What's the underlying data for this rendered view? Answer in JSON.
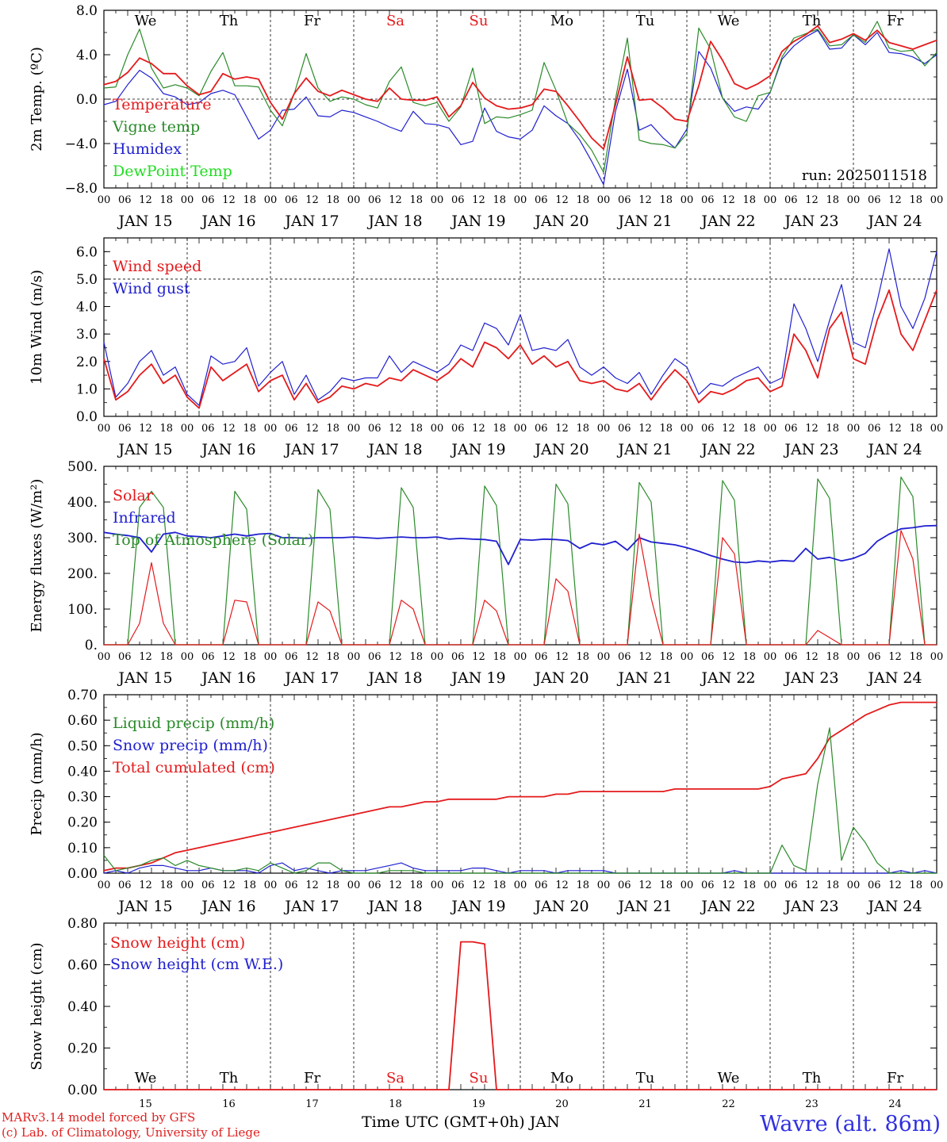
{
  "colors": {
    "red": "#e41a1c",
    "green": "#2a8a2a",
    "blue": "#2020d0",
    "lightgreen": "#22dd22",
    "axis": "#000000",
    "weekend": "#e41a1c"
  },
  "days": [
    {
      "abbr": "We",
      "date": "JAN 15",
      "num": "15",
      "weekend": false
    },
    {
      "abbr": "Th",
      "date": "JAN 16",
      "num": "16",
      "weekend": false
    },
    {
      "abbr": "Fr",
      "date": "JAN 17",
      "num": "17",
      "weekend": false
    },
    {
      "abbr": "Sa",
      "date": "JAN 18",
      "num": "18",
      "weekend": true
    },
    {
      "abbr": "Su",
      "date": "JAN 19",
      "num": "19",
      "weekend": true
    },
    {
      "abbr": "Mo",
      "date": "JAN 20",
      "num": "20",
      "weekend": false
    },
    {
      "abbr": "Tu",
      "date": "JAN 21",
      "num": "21",
      "weekend": false
    },
    {
      "abbr": "We",
      "date": "JAN 22",
      "num": "22",
      "weekend": false
    },
    {
      "abbr": "Th",
      "date": "JAN 23",
      "num": "23",
      "weekend": false
    },
    {
      "abbr": "Fr",
      "date": "JAN 24",
      "num": "24",
      "weekend": false
    }
  ],
  "hour_labels": [
    "00",
    "06",
    "12",
    "18"
  ],
  "footer": {
    "credit1": "MARv3.14 model forced by GFS",
    "credit2": "(c) Lab. of Climatology, University of Liege",
    "xtitle": "Time UTC (GMT+0h) JAN",
    "station": "Wavre (alt. 86m)"
  },
  "chart_data": [
    {
      "id": "temperature",
      "type": "line",
      "ylabel": "2m Temp. (ºC)",
      "ylim": [
        -8,
        8
      ],
      "yticks": [
        "8.0",
        "4.0",
        "0.0",
        "−4.0",
        "−8.0"
      ],
      "ytick_values": [
        8,
        4,
        0,
        -4,
        -8
      ],
      "ref_line": 0,
      "annotation": "run: 2025011518",
      "x_unit": "hours since JAN 15 00 UTC, 3-hourly",
      "series": [
        {
          "name": "Temperature",
          "color": "red",
          "values": [
            1.3,
            1.6,
            2.4,
            3.7,
            3.2,
            2.3,
            2.3,
            1.2,
            0.4,
            0.7,
            2.3,
            1.8,
            2.0,
            1.8,
            -0.3,
            -1.8,
            0.5,
            1.9,
            0.7,
            0.3,
            0.8,
            0.4,
            0.0,
            -0.2,
            1.0,
            0.0,
            -0.1,
            -0.1,
            0.2,
            -1.6,
            -0.6,
            1.5,
            0.1,
            -0.6,
            -0.9,
            -0.8,
            -0.5,
            0.9,
            0.7,
            -0.6,
            -2.0,
            -3.5,
            -4.5,
            -0.5,
            3.8,
            -0.1,
            0.0,
            -0.8,
            -1.8,
            -2.0,
            1.2,
            5.2,
            3.5,
            1.4,
            0.9,
            1.4,
            2.1,
            4.3,
            5.2,
            5.8,
            6.6,
            5.1,
            5.4,
            5.9,
            5.3,
            6.2,
            5.1,
            4.8,
            4.5,
            4.9,
            5.3
          ]
        },
        {
          "name": "Vigne temp",
          "color": "green",
          "values": [
            1.0,
            1.1,
            4.0,
            6.3,
            2.8,
            1.0,
            1.3,
            1.0,
            0.3,
            2.5,
            4.2,
            1.2,
            1.2,
            1.1,
            -1.0,
            -2.4,
            0.5,
            4.1,
            1.0,
            -0.2,
            0.2,
            0.0,
            -0.5,
            -0.8,
            1.6,
            2.9,
            -0.3,
            -0.6,
            -0.3,
            -2.0,
            -0.7,
            2.8,
            -2.2,
            -1.6,
            -1.7,
            -1.4,
            -1.0,
            3.3,
            0.8,
            -2.2,
            -3.2,
            -4.6,
            -6.6,
            0.0,
            5.5,
            -3.7,
            -4.0,
            -4.1,
            -4.4,
            -3.1,
            6.4,
            4.5,
            0.1,
            -1.6,
            -2.0,
            0.3,
            0.6,
            3.8,
            5.5,
            5.9,
            6.3,
            4.8,
            4.9,
            5.8,
            5.1,
            7.0,
            4.6,
            4.3,
            4.4,
            3.0,
            4.2
          ]
        },
        {
          "name": "Humidex",
          "color": "blue",
          "values": [
            -0.5,
            -0.2,
            1.3,
            2.6,
            1.9,
            0.5,
            0.2,
            -0.5,
            -0.3,
            0.5,
            0.8,
            0.4,
            -1.6,
            -3.6,
            -2.8,
            -1.0,
            -0.9,
            0.2,
            -1.5,
            -1.6,
            -1.0,
            -1.2,
            -1.6,
            -2.0,
            -2.5,
            -2.9,
            -1.1,
            -2.2,
            -2.3,
            -2.6,
            -4.1,
            -3.8,
            -0.8,
            -2.9,
            -3.4,
            -3.6,
            -2.8,
            -0.6,
            -1.5,
            -2.2,
            -3.7,
            -5.6,
            -7.7,
            -1.1,
            2.7,
            -2.8,
            -2.3,
            -3.5,
            -4.4,
            -2.7,
            4.3,
            2.8,
            0.1,
            -1.1,
            -0.7,
            -0.9,
            0.6,
            3.6,
            4.8,
            5.6,
            6.2,
            4.5,
            4.6,
            5.8,
            4.9,
            6.0,
            4.2,
            4.1,
            3.8,
            3.2,
            4.0
          ]
        },
        {
          "name": "DewPoint Temp",
          "color": "lightgreen",
          "values": []
        }
      ]
    },
    {
      "id": "wind",
      "type": "line",
      "ylabel": "10m Wind (m/s)",
      "ylim": [
        0,
        6.5
      ],
      "yticks": [
        "6.0",
        "5.0",
        "4.0",
        "3.0",
        "2.0",
        "1.0",
        "0.0"
      ],
      "ytick_values": [
        6,
        5,
        4,
        3,
        2,
        1,
        0
      ],
      "ref_line": 5.0,
      "series": [
        {
          "name": "Wind speed",
          "color": "red",
          "values": [
            2.1,
            0.6,
            0.9,
            1.5,
            1.9,
            1.2,
            1.5,
            0.7,
            0.3,
            1.8,
            1.3,
            1.6,
            1.9,
            0.9,
            1.3,
            1.5,
            0.6,
            1.2,
            0.5,
            0.7,
            1.1,
            1.0,
            1.2,
            1.1,
            1.4,
            1.3,
            1.7,
            1.5,
            1.3,
            1.6,
            2.1,
            1.8,
            2.7,
            2.5,
            2.1,
            2.6,
            1.9,
            2.2,
            1.8,
            2.0,
            1.3,
            1.2,
            1.3,
            1.0,
            0.9,
            1.2,
            0.6,
            1.2,
            1.7,
            1.3,
            0.5,
            0.9,
            0.8,
            1.0,
            1.3,
            1.4,
            0.9,
            1.1,
            3.0,
            2.4,
            1.4,
            3.2,
            3.8,
            2.1,
            1.9,
            3.5,
            4.6,
            3.0,
            2.4,
            3.5,
            4.6
          ]
        },
        {
          "name": "Wind gust",
          "color": "blue",
          "values": [
            2.7,
            0.7,
            1.2,
            2.0,
            2.4,
            1.5,
            1.8,
            0.8,
            0.4,
            2.2,
            1.9,
            2.0,
            2.5,
            1.1,
            1.6,
            2.0,
            0.8,
            1.5,
            0.6,
            0.9,
            1.4,
            1.3,
            1.4,
            1.4,
            2.2,
            1.6,
            2.0,
            1.8,
            1.6,
            1.9,
            2.6,
            2.4,
            3.4,
            3.2,
            2.6,
            3.7,
            2.4,
            2.5,
            2.4,
            2.8,
            1.8,
            1.5,
            1.8,
            1.4,
            1.2,
            1.6,
            0.8,
            1.5,
            2.1,
            1.8,
            0.8,
            1.2,
            1.1,
            1.4,
            1.6,
            1.8,
            1.2,
            1.4,
            4.1,
            3.2,
            2.0,
            3.5,
            4.8,
            2.7,
            2.5,
            4.2,
            6.1,
            4.0,
            3.2,
            4.3,
            6.0
          ]
        }
      ]
    },
    {
      "id": "flux",
      "type": "line",
      "ylabel": "Energy fluxes (W/m²)",
      "ylim": [
        0,
        500
      ],
      "yticks": [
        "500.",
        "400.",
        "300.",
        "200.",
        "100.",
        "0."
      ],
      "ytick_values": [
        500,
        400,
        300,
        200,
        100,
        0
      ],
      "series": [
        {
          "name": "Solar",
          "color": "red",
          "values": [
            0,
            0,
            0,
            60,
            230,
            60,
            0,
            0,
            0,
            0,
            0,
            125,
            120,
            0,
            0,
            0,
            0,
            0,
            120,
            95,
            0,
            0,
            0,
            0,
            0,
            125,
            100,
            0,
            0,
            0,
            0,
            0,
            125,
            95,
            0,
            0,
            0,
            0,
            185,
            150,
            0,
            0,
            0,
            0,
            0,
            310,
            130,
            0,
            0,
            0,
            0,
            0,
            300,
            255,
            0,
            0,
            0,
            0,
            0,
            0,
            40,
            20,
            0,
            0,
            0,
            0,
            0,
            320,
            240,
            0,
            0
          ]
        },
        {
          "name": "Infrared",
          "color": "blue",
          "values": [
            315,
            310,
            306,
            300,
            260,
            310,
            315,
            305,
            303,
            300,
            305,
            310,
            305,
            310,
            312,
            300,
            300,
            298,
            300,
            300,
            300,
            302,
            300,
            298,
            300,
            302,
            300,
            300,
            302,
            296,
            298,
            296,
            295,
            290,
            225,
            295,
            293,
            296,
            295,
            292,
            270,
            285,
            280,
            290,
            265,
            300,
            288,
            284,
            280,
            272,
            262,
            250,
            240,
            232,
            230,
            235,
            232,
            236,
            234,
            270,
            240,
            245,
            235,
            242,
            256,
            290,
            310,
            325,
            328,
            333,
            334
          ]
        },
        {
          "name": "Top of Atmosphere (Solar)",
          "color": "green",
          "values": [
            0,
            0,
            0,
            385,
            430,
            385,
            0,
            0,
            0,
            0,
            0,
            430,
            380,
            0,
            0,
            0,
            0,
            0,
            435,
            380,
            0,
            0,
            0,
            0,
            0,
            440,
            385,
            0,
            0,
            0,
            0,
            0,
            445,
            390,
            0,
            0,
            0,
            0,
            450,
            395,
            0,
            0,
            0,
            0,
            0,
            455,
            400,
            0,
            0,
            0,
            0,
            0,
            460,
            405,
            0,
            0,
            0,
            0,
            0,
            0,
            465,
            410,
            0,
            0,
            0,
            0,
            0,
            470,
            415,
            0,
            0
          ]
        }
      ]
    },
    {
      "id": "precip",
      "type": "line",
      "ylabel": "Precip (mm/h)",
      "ylim": [
        0,
        0.7
      ],
      "yticks": [
        "0.70",
        "0.60",
        "0.50",
        "0.40",
        "0.30",
        "0.20",
        "0.10",
        "0.00"
      ],
      "ytick_values": [
        0.7,
        0.6,
        0.5,
        0.4,
        0.3,
        0.2,
        0.1,
        0.0
      ],
      "series": [
        {
          "name": "Liquid precip (mm/h)",
          "color": "green",
          "values": [
            0.07,
            0.01,
            0.02,
            0.03,
            0.05,
            0.06,
            0.03,
            0.05,
            0.03,
            0.02,
            0.01,
            0.01,
            0.02,
            0.01,
            0.04,
            0.02,
            0.0,
            0.01,
            0.04,
            0.04,
            0.01,
            0.0,
            0.0,
            0.0,
            0.01,
            0.01,
            0.01,
            0.0,
            0.0,
            0.0,
            0.0,
            0.0,
            0.0,
            0.0,
            0.0,
            0.0,
            0.0,
            0.0,
            0.0,
            0.0,
            0.0,
            0.0,
            0.0,
            0.0,
            0.0,
            0.0,
            0.0,
            0.0,
            0.0,
            0.0,
            0.0,
            0.0,
            0.0,
            0.0,
            0.0,
            0.0,
            0.0,
            0.11,
            0.03,
            0.01,
            0.35,
            0.57,
            0.05,
            0.18,
            0.12,
            0.04,
            0.0,
            0.0,
            0.0,
            0.0,
            0.0
          ]
        },
        {
          "name": "Snow precip (mm/h)",
          "color": "blue",
          "values": [
            0.0,
            0.01,
            0.0,
            0.02,
            0.03,
            0.03,
            0.02,
            0.01,
            0.01,
            0.02,
            0.01,
            0.01,
            0.01,
            0.0,
            0.03,
            0.04,
            0.01,
            0.02,
            0.01,
            0.0,
            0.01,
            0.01,
            0.01,
            0.02,
            0.03,
            0.04,
            0.02,
            0.01,
            0.01,
            0.01,
            0.01,
            0.02,
            0.02,
            0.01,
            0.0,
            0.01,
            0.01,
            0.01,
            0.0,
            0.01,
            0.01,
            0.01,
            0.01,
            0.0,
            0.0,
            0.0,
            0.0,
            0.0,
            0.0,
            0.0,
            0.0,
            0.0,
            0.0,
            0.01,
            0.0,
            0.0,
            0.0,
            0.0,
            0.0,
            0.0,
            0.0,
            0.0,
            0.0,
            0.0,
            0.0,
            0.0,
            0.0,
            0.01,
            0.0,
            0.01,
            0.0
          ]
        },
        {
          "name": "Total cumulated (cm)",
          "color": "red",
          "values": [
            0.01,
            0.02,
            0.02,
            0.03,
            0.04,
            0.06,
            0.08,
            0.09,
            0.1,
            0.11,
            0.12,
            0.13,
            0.14,
            0.15,
            0.16,
            0.17,
            0.18,
            0.19,
            0.2,
            0.21,
            0.22,
            0.23,
            0.24,
            0.25,
            0.26,
            0.26,
            0.27,
            0.28,
            0.28,
            0.29,
            0.29,
            0.29,
            0.29,
            0.29,
            0.3,
            0.3,
            0.3,
            0.3,
            0.31,
            0.31,
            0.32,
            0.32,
            0.32,
            0.32,
            0.32,
            0.32,
            0.32,
            0.32,
            0.33,
            0.33,
            0.33,
            0.33,
            0.33,
            0.33,
            0.33,
            0.33,
            0.34,
            0.37,
            0.38,
            0.39,
            0.45,
            0.53,
            0.56,
            0.59,
            0.62,
            0.64,
            0.66,
            0.67,
            0.67,
            0.67,
            0.67
          ]
        }
      ]
    },
    {
      "id": "snow",
      "type": "line",
      "ylabel": "Snow height (cm)",
      "ylim": [
        0,
        0.8
      ],
      "yticks": [
        "0.80",
        "0.60",
        "0.40",
        "0.20",
        "0.00"
      ],
      "ytick_values": [
        0.8,
        0.6,
        0.4,
        0.2,
        0.0
      ],
      "series": [
        {
          "name": "Snow height (cm)",
          "color": "red",
          "x": [
            0,
            29,
            30,
            31,
            32,
            33,
            70
          ],
          "values": [
            0,
            0,
            0.71,
            0.71,
            0.7,
            0,
            0
          ]
        },
        {
          "name": "Snow height (cm W.E.)",
          "color": "blue",
          "values": []
        }
      ]
    }
  ]
}
